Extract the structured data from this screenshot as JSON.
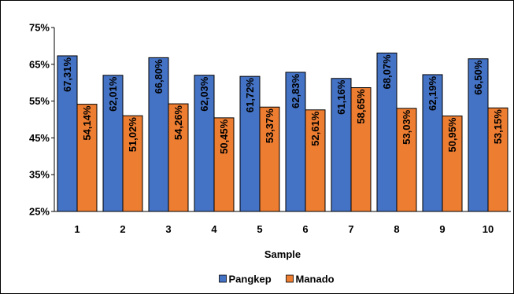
{
  "chart_data": {
    "type": "bar",
    "categories": [
      "1",
      "2",
      "3",
      "4",
      "5",
      "6",
      "7",
      "8",
      "9",
      "10"
    ],
    "series": [
      {
        "name": "Pangkep",
        "color": "#4472C4",
        "values": [
          67.31,
          62.01,
          66.8,
          62.03,
          61.72,
          62.83,
          61.16,
          68.07,
          62.19,
          66.5
        ],
        "labels": [
          "67,31%",
          "62,01%",
          "66,80%",
          "62,03%",
          "61,72%",
          "62,83%",
          "61,16%",
          "68,07%",
          "62,19%",
          "66,50%"
        ]
      },
      {
        "name": "Manado",
        "color": "#ED7D31",
        "values": [
          54.14,
          51.02,
          54.26,
          50.45,
          53.37,
          52.61,
          58.65,
          53.03,
          50.95,
          53.15
        ],
        "labels": [
          "54,14%",
          "51,02%",
          "54,26%",
          "50,45%",
          "53,37%",
          "52,61%",
          "58,65%",
          "53,03%",
          "50,95%",
          "53,15%"
        ]
      }
    ],
    "xlabel": "Sample",
    "ylabel": "",
    "ylim": [
      25,
      75
    ],
    "yticks": [
      25,
      35,
      45,
      55,
      65,
      75
    ],
    "ytick_labels": [
      "25%",
      "35%",
      "45%",
      "55%",
      "65%",
      "75%"
    ],
    "grid": false,
    "legend_position": "bottom"
  }
}
